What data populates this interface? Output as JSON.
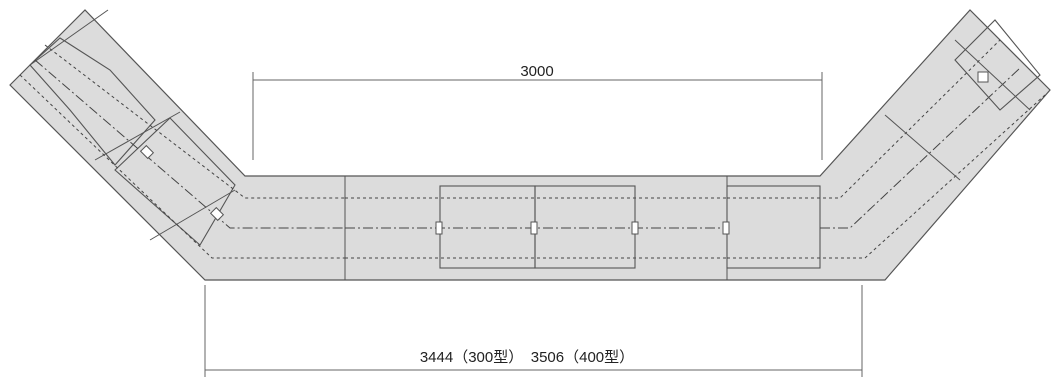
{
  "dimensions": {
    "top": "3000",
    "bottom": "3444（300型）　3506（400型）"
  }
}
